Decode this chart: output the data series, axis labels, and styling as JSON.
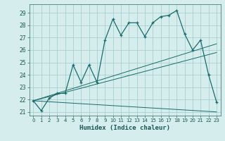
{
  "xlabel": "Humidex (Indice chaleur)",
  "bg_color": "#d5eded",
  "grid_color": "#a0c8c8",
  "line_color": "#1a6b6b",
  "xlim": [
    -0.5,
    23.5
  ],
  "ylim": [
    20.7,
    29.7
  ],
  "yticks": [
    21,
    22,
    23,
    24,
    25,
    26,
    27,
    28,
    29
  ],
  "xticks": [
    0,
    1,
    2,
    3,
    4,
    5,
    6,
    7,
    8,
    9,
    10,
    11,
    12,
    13,
    14,
    15,
    16,
    17,
    18,
    19,
    20,
    21,
    22,
    23
  ],
  "main_x": [
    0,
    1,
    2,
    3,
    4,
    5,
    6,
    7,
    8,
    9,
    10,
    11,
    12,
    13,
    14,
    15,
    16,
    17,
    18,
    19,
    20,
    21,
    22,
    23
  ],
  "main_y": [
    21.9,
    21.1,
    22.1,
    22.5,
    22.5,
    24.8,
    23.4,
    24.8,
    23.4,
    26.8,
    28.5,
    27.2,
    28.2,
    28.2,
    27.1,
    28.2,
    28.7,
    28.8,
    29.2,
    27.3,
    26.0,
    26.8,
    24.0,
    21.8
  ],
  "line2_y": [
    21.9,
    26.5
  ],
  "line3_y": [
    21.9,
    25.8
  ],
  "line4_y": [
    21.9,
    21.0
  ]
}
